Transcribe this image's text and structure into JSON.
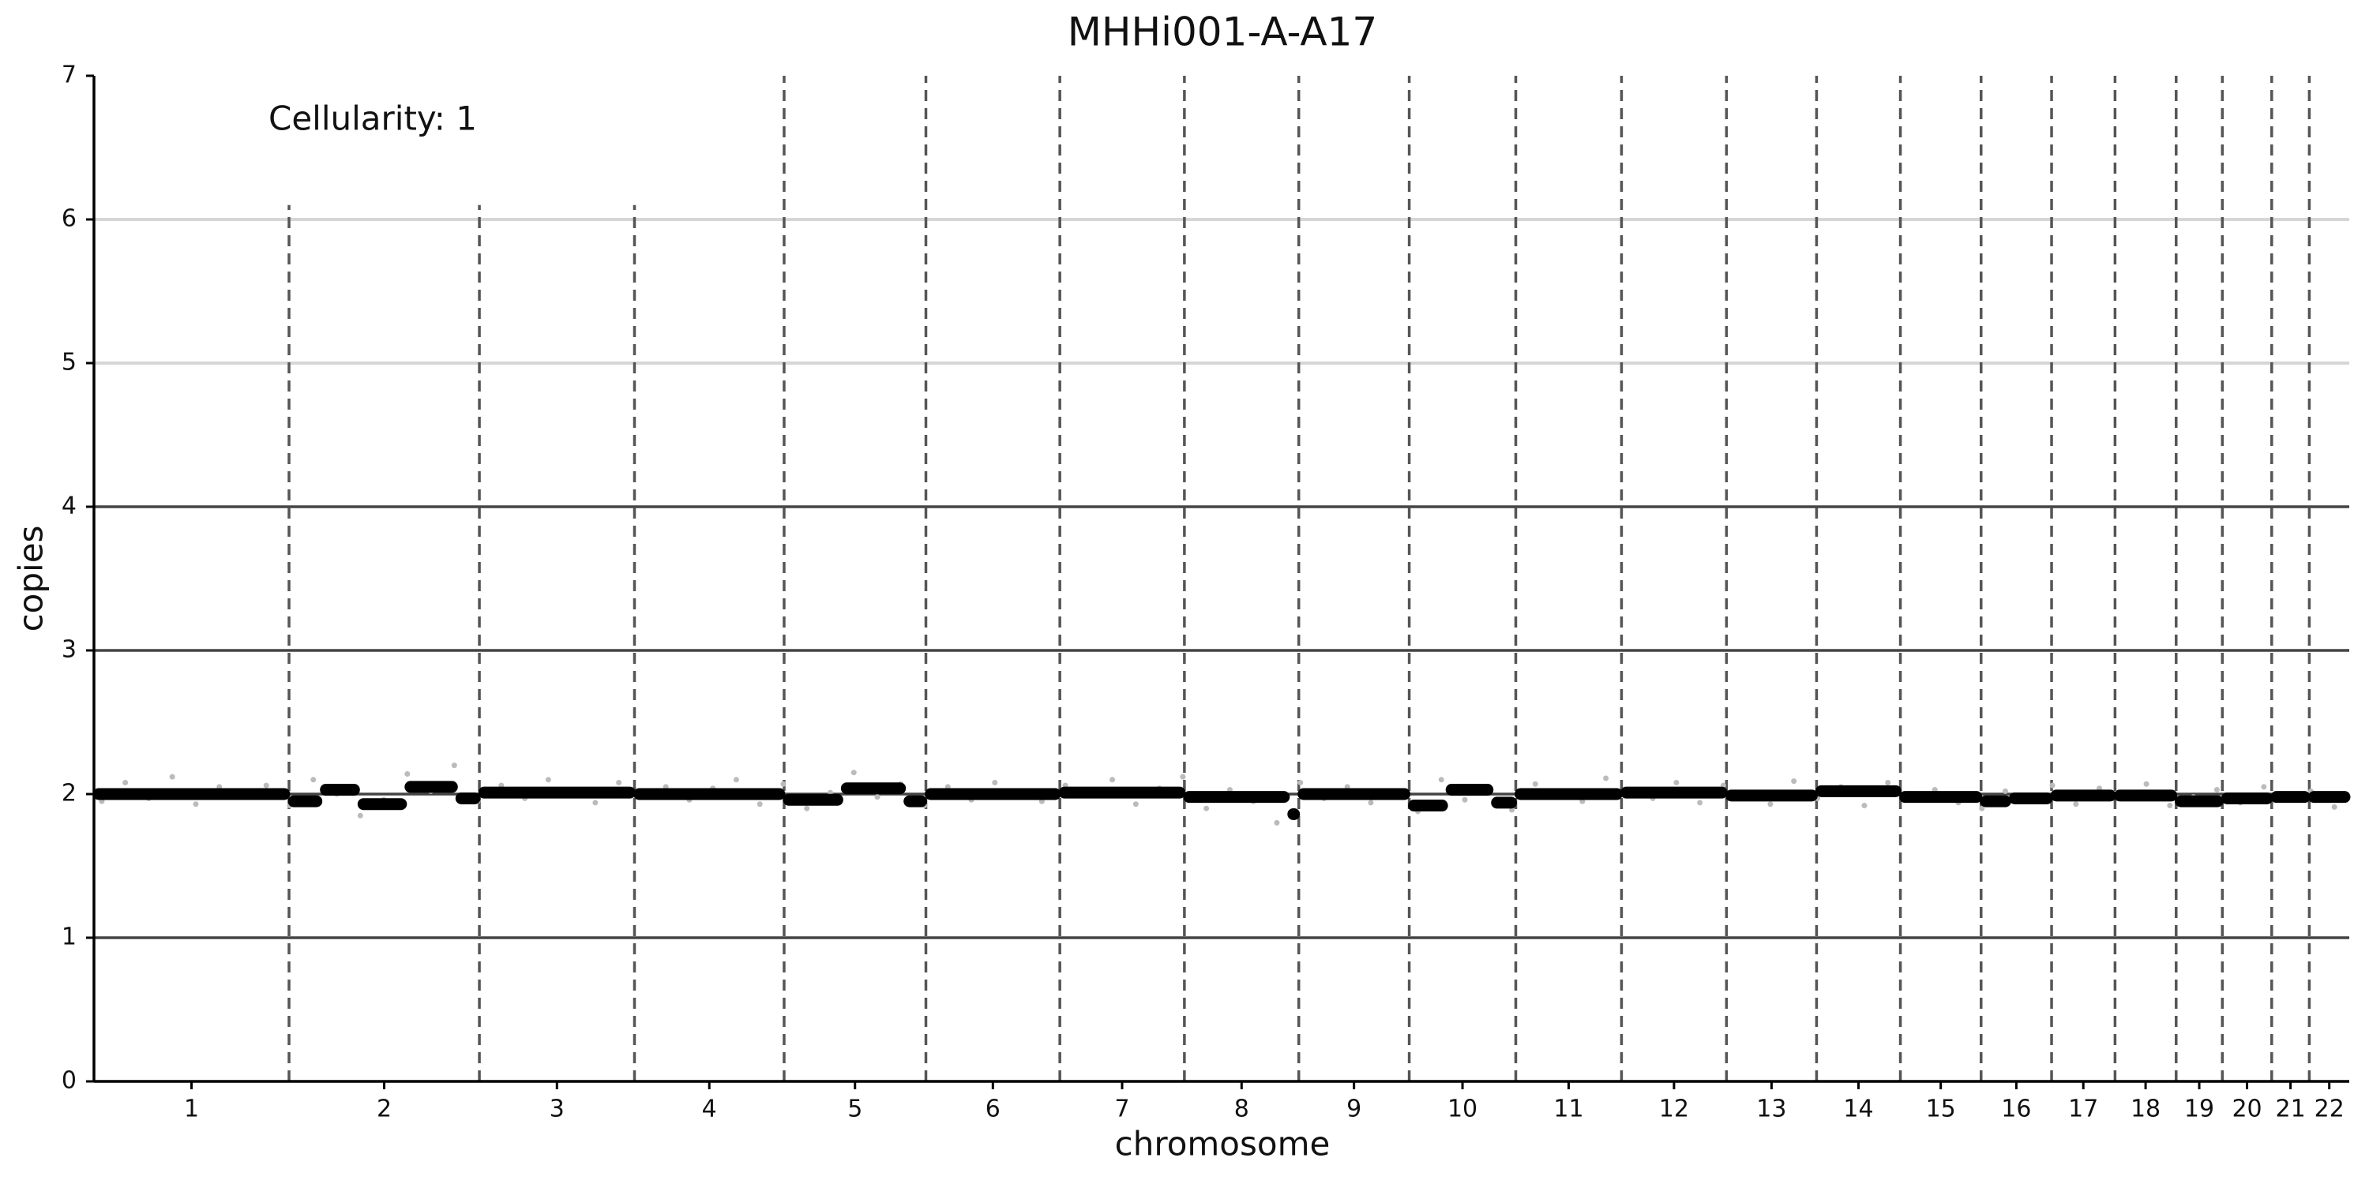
{
  "chart_data": {
    "type": "copy-number",
    "title": "MHHi001-A-A17",
    "annotation": "Cellularity: 1",
    "xlabel": "chromosome",
    "ylabel": "copies",
    "xlim": [
      0,
      2879
    ],
    "ylim": [
      0,
      7
    ],
    "yticks": [
      0,
      1,
      2,
      3,
      4,
      5,
      6,
      7
    ],
    "xticks": [
      {
        "value": 124.5,
        "label": "1"
      },
      {
        "value": 370.5,
        "label": "2"
      },
      {
        "value": 591,
        "label": "3"
      },
      {
        "value": 785.5,
        "label": "4"
      },
      {
        "value": 971.5,
        "label": "5"
      },
      {
        "value": 1147.5,
        "label": "6"
      },
      {
        "value": 1312.5,
        "label": "7"
      },
      {
        "value": 1465,
        "label": "8"
      },
      {
        "value": 1608.5,
        "label": "9"
      },
      {
        "value": 1747,
        "label": "10"
      },
      {
        "value": 1882.5,
        "label": "11"
      },
      {
        "value": 2017,
        "label": "12"
      },
      {
        "value": 2141.5,
        "label": "13"
      },
      {
        "value": 2252.5,
        "label": "14"
      },
      {
        "value": 2357.5,
        "label": "15"
      },
      {
        "value": 2454,
        "label": "16"
      },
      {
        "value": 2539.5,
        "label": "17"
      },
      {
        "value": 2619,
        "label": "18"
      },
      {
        "value": 2687.5,
        "label": "19"
      },
      {
        "value": 2748.5,
        "label": "20"
      },
      {
        "value": 2804,
        "label": "21"
      },
      {
        "value": 2853.5,
        "label": "22"
      }
    ],
    "reference_lines": {
      "dark": [
        1,
        2,
        3,
        4
      ],
      "light": [
        5,
        6
      ]
    },
    "boundaries": {
      "x": [
        249,
        492,
        690,
        881,
        1062,
        1233,
        1392,
        1538,
        1679,
        1815,
        1950,
        2084,
        2199,
        2306,
        2409,
        2499,
        2580,
        2658,
        2717,
        2780,
        2828
      ],
      "ymax": [
        6.1,
        6.1,
        6.1,
        7,
        7,
        7,
        7,
        7,
        7,
        7,
        7,
        7,
        7,
        7,
        7,
        7,
        7,
        7,
        7,
        7,
        7
      ]
    },
    "segments": {
      "color": "#000000",
      "x0": [
        0,
        249,
        290,
        338,
        398,
        463,
        492,
        690,
        881,
        955,
        1035,
        1062,
        1233,
        1392,
        1525,
        1538,
        1679,
        1727,
        1785,
        1815,
        1950,
        2084,
        2199,
        2306,
        2409,
        2446,
        2499,
        2580,
        2658,
        2717,
        2780,
        2828
      ],
      "x1": [
        249,
        290,
        338,
        398,
        463,
        492,
        690,
        881,
        955,
        1035,
        1062,
        1233,
        1392,
        1525,
        1538,
        1679,
        1727,
        1785,
        1815,
        1950,
        2084,
        2199,
        2306,
        2409,
        2446,
        2499,
        2580,
        2658,
        2717,
        2780,
        2828,
        2879
      ],
      "y": [
        2.0,
        1.95,
        2.03,
        1.93,
        2.05,
        1.97,
        2.01,
        2.0,
        1.96,
        2.04,
        1.95,
        2.0,
        2.01,
        1.98,
        1.86,
        2.0,
        1.92,
        2.03,
        1.94,
        2.0,
        2.01,
        1.99,
        2.02,
        1.98,
        1.95,
        1.97,
        1.99,
        1.99,
        1.95,
        1.97,
        1.98,
        1.98
      ]
    },
    "points": {
      "color": "#bbbbbb",
      "x": [
        10,
        40,
        70,
        100,
        130,
        160,
        190,
        220,
        250,
        280,
        310,
        340,
        370,
        400,
        430,
        460,
        490,
        520,
        550,
        580,
        610,
        640,
        670,
        700,
        730,
        760,
        790,
        820,
        850,
        880,
        910,
        940,
        970,
        1000,
        1030,
        1060,
        1090,
        1120,
        1150,
        1180,
        1210,
        1240,
        1270,
        1300,
        1330,
        1360,
        1390,
        1420,
        1450,
        1480,
        1510,
        1540,
        1570,
        1600,
        1630,
        1660,
        1690,
        1720,
        1750,
        1780,
        1810,
        1840,
        1870,
        1900,
        1930,
        1960,
        1990,
        2020,
        2050,
        2080,
        2110,
        2140,
        2170,
        2200,
        2230,
        2260,
        2290,
        2320,
        2350,
        2380,
        2410,
        2440,
        2470,
        2500,
        2530,
        2560,
        2590,
        2620,
        2650,
        2680,
        2710,
        2740,
        2770,
        2800,
        2830,
        2860
      ],
      "y": [
        1.95,
        2.08,
        1.97,
        2.12,
        1.93,
        2.05,
        1.98,
        2.06,
        1.92,
        2.1,
        2.0,
        1.85,
        1.96,
        2.14,
        2.02,
        2.2,
        1.95,
        2.06,
        1.97,
        2.1,
        2.03,
        1.94,
        2.08,
        1.98,
        2.05,
        1.96,
        2.04,
        2.1,
        1.93,
        2.07,
        1.9,
        2.01,
        2.15,
        1.98,
        2.07,
        1.92,
        2.05,
        1.96,
        2.08,
        2.02,
        1.95,
        2.06,
        1.99,
        2.1,
        1.93,
        2.04,
        2.12,
        1.9,
        2.03,
        1.95,
        1.8,
        2.08,
        1.97,
        2.05,
        1.94,
        2.02,
        1.88,
        2.1,
        1.96,
        2.04,
        1.89,
        2.07,
        2.0,
        1.95,
        2.11,
        2.03,
        1.97,
        2.08,
        1.94,
        2.06,
        2.0,
        1.93,
        2.09,
        1.97,
        2.05,
        1.92,
        2.08,
        1.99,
        2.03,
        1.94,
        1.9,
        2.02,
        1.96,
        2.06,
        1.93,
        2.04,
        1.97,
        2.07,
        1.92,
        1.98,
        2.03,
        1.94,
        2.05,
        1.96,
        2.02,
        1.91
      ]
    }
  }
}
